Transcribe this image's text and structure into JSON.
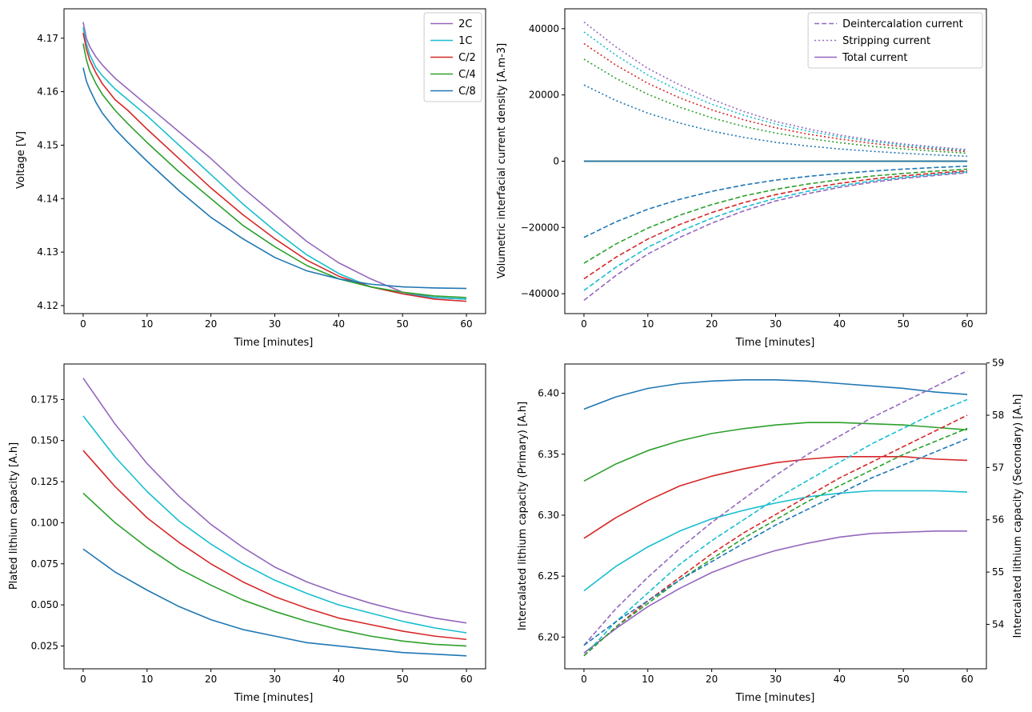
{
  "series_colors": {
    "2C": "#9467bd",
    "1C": "#17becf",
    "C/2": "#d62728",
    "C/4": "#2ca02c",
    "C/8": "#1f77b4"
  },
  "chart_data": [
    {
      "id": "voltage",
      "type": "line",
      "xlabel": "Time [minutes]",
      "ylabel": "Voltage [V]",
      "xlim": [
        -3,
        63
      ],
      "ylim": [
        4.1185,
        4.1755
      ],
      "xticks": [
        0,
        10,
        20,
        30,
        40,
        50,
        60
      ],
      "xtick_labels": [
        "0",
        "10",
        "20",
        "30",
        "40",
        "50",
        "60"
      ],
      "yticks": [
        4.12,
        4.13,
        4.14,
        4.15,
        4.16,
        4.17
      ],
      "ytick_labels": [
        "4.12",
        "4.13",
        "4.14",
        "4.15",
        "4.16",
        "4.17"
      ],
      "legend": {
        "position": "top-right",
        "entries": [
          "2C",
          "1C",
          "C/2",
          "C/4",
          "C/8"
        ]
      },
      "x": [
        0,
        0.5,
        1,
        2,
        3,
        5,
        7,
        10,
        15,
        20,
        25,
        30,
        35,
        40,
        45,
        50,
        55,
        60
      ],
      "series": [
        {
          "name": "2C",
          "color": "#9467bd",
          "style": "solid",
          "values": [
            4.173,
            4.17,
            4.1685,
            4.1665,
            4.165,
            4.1625,
            4.1605,
            4.1575,
            4.1525,
            4.1475,
            4.142,
            4.137,
            4.132,
            4.128,
            4.125,
            4.1225,
            4.1215,
            4.1212
          ]
        },
        {
          "name": "1C",
          "color": "#17becf",
          "style": "solid",
          "values": [
            4.172,
            4.169,
            4.167,
            4.1645,
            4.163,
            4.1605,
            4.1585,
            4.1555,
            4.15,
            4.1445,
            4.139,
            4.134,
            4.1295,
            4.126,
            4.1235,
            4.1222,
            4.1215,
            4.1212
          ]
        },
        {
          "name": "C/2",
          "color": "#d62728",
          "style": "solid",
          "values": [
            4.171,
            4.168,
            4.166,
            4.1635,
            4.1615,
            4.1585,
            4.1565,
            4.153,
            4.1475,
            4.142,
            4.137,
            4.1325,
            4.1285,
            4.1255,
            4.1235,
            4.1222,
            4.1212,
            4.1208
          ]
        },
        {
          "name": "C/4",
          "color": "#2ca02c",
          "style": "solid",
          "values": [
            4.169,
            4.166,
            4.164,
            4.1615,
            4.1595,
            4.1565,
            4.154,
            4.1505,
            4.145,
            4.14,
            4.135,
            4.131,
            4.1275,
            4.125,
            4.1235,
            4.1225,
            4.1218,
            4.1215
          ]
        },
        {
          "name": "C/8",
          "color": "#1f77b4",
          "style": "solid",
          "values": [
            4.1645,
            4.162,
            4.1605,
            4.158,
            4.156,
            4.153,
            4.1505,
            4.147,
            4.1415,
            4.1365,
            4.1325,
            4.129,
            4.1265,
            4.125,
            4.124,
            4.1235,
            4.1233,
            4.1232
          ]
        }
      ]
    },
    {
      "id": "current-density",
      "type": "line",
      "xlabel": "Time [minutes]",
      "ylabel": "Volumetric interfacial current density [A.m-3]",
      "xlim": [
        -3,
        63
      ],
      "ylim": [
        -46000,
        46000
      ],
      "xticks": [
        0,
        10,
        20,
        30,
        40,
        50,
        60
      ],
      "xtick_labels": [
        "0",
        "10",
        "20",
        "30",
        "40",
        "50",
        "60"
      ],
      "yticks": [
        -40000,
        -20000,
        0,
        20000,
        40000
      ],
      "ytick_labels": [
        "−40000",
        "−20000",
        "0",
        "20000",
        "40000"
      ],
      "legend": {
        "position": "top-right",
        "entries": [
          {
            "label": "Deintercalation current",
            "style": "dashed",
            "color": "#9467bd"
          },
          {
            "label": "Stripping current",
            "style": "dotted",
            "color": "#9467bd"
          },
          {
            "label": "Total current",
            "style": "solid",
            "color": "#9467bd"
          }
        ]
      },
      "x": [
        0,
        5,
        10,
        15,
        20,
        25,
        30,
        35,
        40,
        45,
        50,
        55,
        60
      ],
      "series": [
        {
          "rate": "2C",
          "kind": "stripping",
          "color": "#9467bd",
          "style": "dotted",
          "values": [
            42000,
            34500,
            28000,
            23000,
            18700,
            15000,
            12000,
            9800,
            7900,
            6400,
            5200,
            4300,
            3500
          ]
        },
        {
          "rate": "1C",
          "kind": "stripping",
          "color": "#17becf",
          "style": "dotted",
          "values": [
            39000,
            32000,
            26000,
            21200,
            17200,
            13900,
            11200,
            9100,
            7400,
            6000,
            4900,
            4000,
            3200
          ]
        },
        {
          "rate": "C/2",
          "kind": "stripping",
          "color": "#d62728",
          "style": "dotted",
          "values": [
            35500,
            29000,
            23500,
            19100,
            15500,
            12500,
            10100,
            8200,
            6700,
            5400,
            4400,
            3600,
            2900
          ]
        },
        {
          "rate": "C/4",
          "kind": "stripping",
          "color": "#2ca02c",
          "style": "dotted",
          "values": [
            30800,
            25000,
            20200,
            16300,
            13100,
            10500,
            8500,
            6900,
            5600,
            4500,
            3700,
            3000,
            2400
          ]
        },
        {
          "rate": "C/8",
          "kind": "stripping",
          "color": "#1f77b4",
          "style": "dotted",
          "values": [
            23000,
            18300,
            14500,
            11500,
            9100,
            7200,
            5700,
            4600,
            3700,
            3000,
            2400,
            1900,
            1500
          ]
        },
        {
          "rate": "2C",
          "kind": "deintercalation",
          "color": "#9467bd",
          "style": "dashed",
          "values": [
            -42000,
            -34500,
            -28000,
            -23000,
            -18700,
            -15000,
            -12000,
            -9800,
            -7900,
            -6400,
            -5200,
            -4300,
            -3500
          ]
        },
        {
          "rate": "1C",
          "kind": "deintercalation",
          "color": "#17becf",
          "style": "dashed",
          "values": [
            -39000,
            -32000,
            -26000,
            -21200,
            -17200,
            -13900,
            -11200,
            -9100,
            -7400,
            -6000,
            -4900,
            -4000,
            -3200
          ]
        },
        {
          "rate": "C/2",
          "kind": "deintercalation",
          "color": "#d62728",
          "style": "dashed",
          "values": [
            -35500,
            -29000,
            -23500,
            -19100,
            -15500,
            -12500,
            -10100,
            -8200,
            -6700,
            -5400,
            -4400,
            -3600,
            -2900
          ]
        },
        {
          "rate": "C/4",
          "kind": "deintercalation",
          "color": "#2ca02c",
          "style": "dashed",
          "values": [
            -30800,
            -25000,
            -20200,
            -16300,
            -13100,
            -10500,
            -8500,
            -6900,
            -5600,
            -4500,
            -3700,
            -3000,
            -2400
          ]
        },
        {
          "rate": "C/8",
          "kind": "deintercalation",
          "color": "#1f77b4",
          "style": "dashed",
          "values": [
            -23000,
            -18300,
            -14500,
            -11500,
            -9100,
            -7200,
            -5700,
            -4600,
            -3700,
            -3000,
            -2400,
            -1900,
            -1500
          ]
        },
        {
          "rate": "2C",
          "kind": "total",
          "color": "#9467bd",
          "style": "solid",
          "values": [
            0,
            0,
            0,
            0,
            0,
            0,
            0,
            0,
            0,
            0,
            0,
            0,
            0
          ]
        },
        {
          "rate": "1C",
          "kind": "total",
          "color": "#17becf",
          "style": "solid",
          "values": [
            0,
            0,
            0,
            0,
            0,
            0,
            0,
            0,
            0,
            0,
            0,
            0,
            0
          ]
        },
        {
          "rate": "C/2",
          "kind": "total",
          "color": "#d62728",
          "style": "solid",
          "values": [
            0,
            0,
            0,
            0,
            0,
            0,
            0,
            0,
            0,
            0,
            0,
            0,
            0
          ]
        },
        {
          "rate": "C/4",
          "kind": "total",
          "color": "#2ca02c",
          "style": "solid",
          "values": [
            0,
            0,
            0,
            0,
            0,
            0,
            0,
            0,
            0,
            0,
            0,
            0,
            0
          ]
        },
        {
          "rate": "C/8",
          "kind": "total",
          "color": "#1f77b4",
          "style": "solid",
          "values": [
            0,
            0,
            0,
            0,
            0,
            0,
            0,
            0,
            0,
            0,
            0,
            0,
            0
          ]
        }
      ]
    },
    {
      "id": "plated-lithium",
      "type": "line",
      "xlabel": "Time [minutes]",
      "ylabel": "Plated lithium capacity [A.h]",
      "xlim": [
        -3,
        63
      ],
      "ylim": [
        0.0111,
        0.1966
      ],
      "xticks": [
        0,
        10,
        20,
        30,
        40,
        50,
        60
      ],
      "xtick_labels": [
        "0",
        "10",
        "20",
        "30",
        "40",
        "50",
        "60"
      ],
      "yticks": [
        0.025,
        0.05,
        0.075,
        0.1,
        0.125,
        0.15,
        0.175
      ],
      "ytick_labels": [
        "0.025",
        "0.050",
        "0.075",
        "0.100",
        "0.125",
        "0.150",
        "0.175"
      ],
      "x": [
        0,
        5,
        10,
        15,
        20,
        25,
        30,
        35,
        40,
        45,
        50,
        55,
        60
      ],
      "series": [
        {
          "rate": "2C",
          "color": "#9467bd",
          "style": "solid",
          "values": [
            0.188,
            0.16,
            0.136,
            0.116,
            0.099,
            0.085,
            0.073,
            0.064,
            0.057,
            0.051,
            0.046,
            0.042,
            0.039
          ]
        },
        {
          "rate": "1C",
          "color": "#17becf",
          "style": "solid",
          "values": [
            0.165,
            0.14,
            0.119,
            0.101,
            0.087,
            0.075,
            0.065,
            0.057,
            0.05,
            0.045,
            0.04,
            0.036,
            0.033
          ]
        },
        {
          "rate": "C/2",
          "color": "#d62728",
          "style": "solid",
          "values": [
            0.144,
            0.122,
            0.103,
            0.088,
            0.075,
            0.064,
            0.055,
            0.048,
            0.042,
            0.038,
            0.034,
            0.031,
            0.029
          ]
        },
        {
          "rate": "C/4",
          "color": "#2ca02c",
          "style": "solid",
          "values": [
            0.118,
            0.1,
            0.085,
            0.072,
            0.062,
            0.053,
            0.046,
            0.04,
            0.035,
            0.031,
            0.028,
            0.026,
            0.025
          ]
        },
        {
          "rate": "C/8",
          "color": "#1f77b4",
          "style": "solid",
          "values": [
            0.084,
            0.07,
            0.059,
            0.049,
            0.041,
            0.035,
            0.031,
            0.027,
            0.025,
            0.023,
            0.021,
            0.02,
            0.019
          ]
        }
      ]
    },
    {
      "id": "intercalated-lithium",
      "type": "line",
      "xlabel": "Time [minutes]",
      "ylabel": "Intercalated lithium capacity (Primary) [A.h]",
      "y2label": "Intercalated lithium capacity (Secondary) [A.h]",
      "xlim": [
        -3,
        63
      ],
      "ylim": [
        6.174,
        6.424
      ],
      "y2lim": [
        53.15,
        58.98
      ],
      "xticks": [
        0,
        10,
        20,
        30,
        40,
        50,
        60
      ],
      "xtick_labels": [
        "0",
        "10",
        "20",
        "30",
        "40",
        "50",
        "60"
      ],
      "yticks": [
        6.2,
        6.25,
        6.3,
        6.35,
        6.4
      ],
      "ytick_labels": [
        "6.20",
        "6.25",
        "6.30",
        "6.35",
        "6.40"
      ],
      "y2ticks": [
        54,
        55,
        56,
        57,
        58,
        59
      ],
      "y2tick_labels": [
        "54",
        "55",
        "56",
        "57",
        "58",
        "59"
      ],
      "x": [
        0,
        5,
        10,
        15,
        20,
        25,
        30,
        35,
        40,
        45,
        50,
        55,
        60
      ],
      "series": [
        {
          "rate": "C/8",
          "axis": "primary",
          "color": "#1f77b4",
          "style": "solid",
          "values": [
            6.387,
            6.397,
            6.404,
            6.408,
            6.41,
            6.411,
            6.411,
            6.41,
            6.408,
            6.406,
            6.404,
            6.401,
            6.399
          ]
        },
        {
          "rate": "C/4",
          "axis": "primary",
          "color": "#2ca02c",
          "style": "solid",
          "values": [
            6.328,
            6.342,
            6.353,
            6.361,
            6.367,
            6.371,
            6.374,
            6.376,
            6.376,
            6.375,
            6.374,
            6.372,
            6.37
          ]
        },
        {
          "rate": "C/2",
          "axis": "primary",
          "color": "#d62728",
          "style": "solid",
          "values": [
            6.281,
            6.298,
            6.312,
            6.324,
            6.332,
            6.338,
            6.343,
            6.346,
            6.348,
            6.348,
            6.348,
            6.346,
            6.345
          ]
        },
        {
          "rate": "1C",
          "axis": "primary",
          "color": "#17becf",
          "style": "solid",
          "values": [
            6.238,
            6.258,
            6.274,
            6.287,
            6.297,
            6.304,
            6.31,
            6.315,
            6.318,
            6.32,
            6.32,
            6.32,
            6.319
          ]
        },
        {
          "rate": "2C",
          "axis": "primary",
          "color": "#9467bd",
          "style": "solid",
          "values": [
            6.187,
            6.207,
            6.225,
            6.24,
            6.253,
            6.263,
            6.271,
            6.277,
            6.282,
            6.285,
            6.286,
            6.287,
            6.287
          ]
        },
        {
          "rate": "2C",
          "axis": "secondary",
          "color": "#9467bd",
          "style": "dashed",
          "values": [
            53.6,
            54.3,
            54.9,
            55.45,
            55.95,
            56.4,
            56.85,
            57.25,
            57.6,
            57.95,
            58.25,
            58.55,
            58.85
          ]
        },
        {
          "rate": "1C",
          "axis": "secondary",
          "color": "#17becf",
          "style": "dashed",
          "values": [
            53.4,
            54.05,
            54.6,
            55.15,
            55.6,
            56.0,
            56.4,
            56.75,
            57.1,
            57.45,
            57.75,
            58.05,
            58.3
          ]
        },
        {
          "rate": "C/2",
          "axis": "secondary",
          "color": "#d62728",
          "style": "dashed",
          "values": [
            53.4,
            53.95,
            54.45,
            54.9,
            55.35,
            55.75,
            56.1,
            56.45,
            56.8,
            57.1,
            57.4,
            57.7,
            58.0
          ]
        },
        {
          "rate": "C/4",
          "axis": "secondary",
          "color": "#2ca02c",
          "style": "dashed",
          "values": [
            53.4,
            53.95,
            54.4,
            54.85,
            55.25,
            55.65,
            56.0,
            56.35,
            56.65,
            56.95,
            57.25,
            57.5,
            57.75
          ]
        },
        {
          "rate": "C/8",
          "axis": "secondary",
          "color": "#1f77b4",
          "style": "dashed",
          "values": [
            53.6,
            54.05,
            54.45,
            54.85,
            55.2,
            55.55,
            55.9,
            56.2,
            56.5,
            56.8,
            57.05,
            57.3,
            57.55
          ]
        }
      ]
    }
  ]
}
